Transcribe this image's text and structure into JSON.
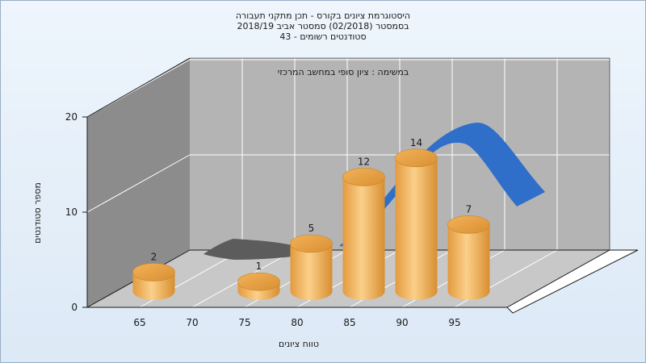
{
  "title_lines": [
    "היסטוגרמת ציונים בקורס - תכן מתקני תעבורה",
    "בסמסטר  (02/2018)  סמסטר אביב 2018/19",
    "סטודנטים רשומים - 43"
  ],
  "chart_data": {
    "type": "bar",
    "subtitle": "במשימה : ציון סופי במחשב המרכזי",
    "categories": [
      "65",
      "70",
      "75",
      "80",
      "85",
      "90",
      "95"
    ],
    "bars": [
      {
        "label": "65",
        "value": 2
      },
      {
        "label": "75",
        "value": 1
      },
      {
        "label": "80",
        "value": 5
      },
      {
        "label": "85",
        "value": 12
      },
      {
        "label": "90",
        "value": 14
      },
      {
        "label": "95",
        "value": 7
      }
    ],
    "xlabel": "טווח ציונים",
    "ylabel": "מספר סטודנטים",
    "ylim": [
      0,
      20
    ],
    "yticks": [
      0,
      10,
      20
    ],
    "grid": true,
    "colors": {
      "bar_body": "#f0b060",
      "bar_top": "#e8a040",
      "curve_gray": "#5c5c5c",
      "curve_blue": "#2f6fc9",
      "back_wall": "#b4b4b4",
      "left_wall": "#8c8c8c",
      "floor": "#c8c8c8"
    }
  }
}
